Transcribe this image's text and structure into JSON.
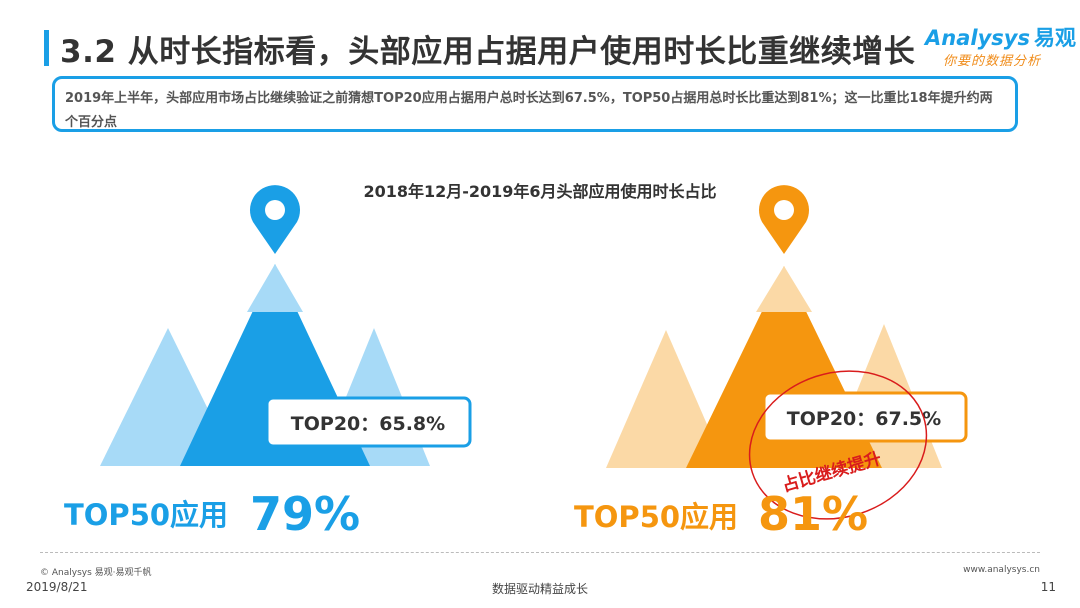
{
  "header": {
    "title": "3.2 从时长指标看，头部应用占据用户使用时长比重继续增长"
  },
  "brand": {
    "logo_en": "Analysys",
    "logo_cn": "易观",
    "slogan": "你要的数据分析"
  },
  "summary": {
    "text": "2019年上半年，头部应用市场占比继续验证之前猜想TOP20应用占据用户总时长达到67.5%，TOP50占据用总时长比重达到81%；这一比重比18年提升约两个百分点"
  },
  "chart_data": {
    "type": "pictorial",
    "title": "2018年12月-2019年6月头部应用使用时长占比",
    "panels": [
      {
        "color": "#1a9fe6",
        "light_color": "#a7daf7",
        "top20_label": "TOP20：65.8%",
        "top20_value": 65.8,
        "top50_label": "TOP50应用",
        "top50_value_label": "79%",
        "top50_value": 79
      },
      {
        "color": "#f5960f",
        "light_color": "#fbd9a6",
        "top20_label": "TOP20：67.5%",
        "top20_value": 67.5,
        "top50_label": "TOP50应用",
        "top50_value_label": "81%",
        "top50_value": 81,
        "annotation": "占比继续提升"
      }
    ]
  },
  "footer": {
    "copyright": "© Analysys 易观·易观千帆",
    "url": "www.analysys.cn",
    "date": "2019/8/21",
    "slogan": "数据驱动精益成长",
    "page": "11"
  }
}
